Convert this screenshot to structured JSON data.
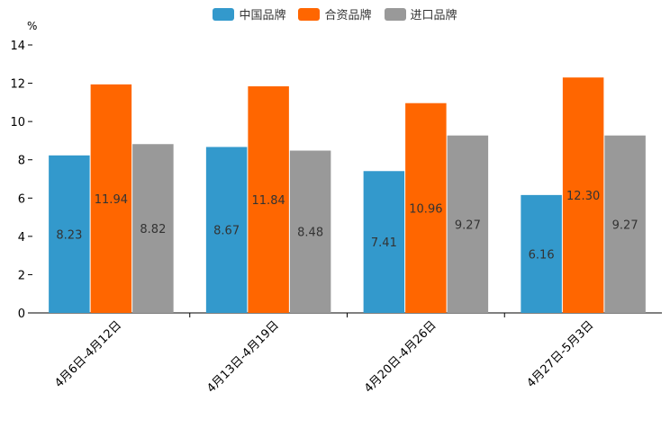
{
  "chart_data": {
    "type": "bar",
    "title": "",
    "ylabel": "%",
    "xlabel": "",
    "ylim": [
      0,
      14
    ],
    "yticks": [
      0,
      2,
      4,
      6,
      8,
      10,
      12,
      14
    ],
    "categories": [
      "4月6日-4月12日",
      "4月13日-4月19日",
      "4月20日-4月26日",
      "4月27日-5月3日"
    ],
    "series": [
      {
        "name": "中国品牌",
        "color": "#3399cc",
        "values": [
          8.23,
          8.67,
          7.41,
          6.16
        ],
        "labels": [
          "8.23",
          "8.67",
          "7.41",
          "6.16"
        ]
      },
      {
        "name": "合资品牌",
        "color": "#ff6600",
        "values": [
          11.94,
          11.84,
          10.96,
          12.3
        ],
        "labels": [
          "11.94",
          "11.84",
          "10.96",
          "12.30"
        ]
      },
      {
        "name": "进口品牌",
        "color": "#999999",
        "values": [
          8.82,
          8.48,
          9.27,
          9.27
        ],
        "labels": [
          "8.82",
          "8.48",
          "9.27",
          "9.27"
        ]
      }
    ],
    "legend_position": "top-center"
  }
}
